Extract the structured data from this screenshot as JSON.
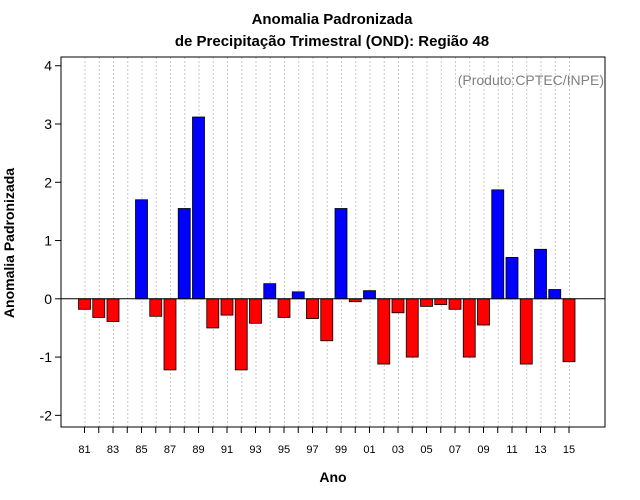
{
  "chart_data": {
    "type": "bar",
    "title_line1": "Anomalia Padronizada",
    "title_line2": "de Precipitação Trimestral (OND): Região 48",
    "xlabel": "Ano",
    "ylabel": "Anomalia Padronizada",
    "annotation": "(Produto:CPTEC/INPE)",
    "ylim": [
      -2.2,
      4.15
    ],
    "yticks": [
      -2,
      -1,
      0,
      1,
      2,
      3,
      4
    ],
    "years": [
      1981,
      1982,
      1983,
      1984,
      1985,
      1986,
      1987,
      1988,
      1989,
      1990,
      1991,
      1992,
      1993,
      1994,
      1995,
      1996,
      1997,
      1998,
      1999,
      2000,
      2001,
      2002,
      2003,
      2004,
      2005,
      2006,
      2007,
      2008,
      2009,
      2010,
      2011,
      2012,
      2013,
      2014,
      2015
    ],
    "values": [
      -0.18,
      -0.32,
      -0.39,
      0,
      1.7,
      -0.3,
      -1.22,
      1.55,
      3.12,
      -0.5,
      -0.28,
      -1.22,
      -0.42,
      0.26,
      -0.32,
      0.12,
      -0.34,
      -0.72,
      1.55,
      -0.05,
      0.14,
      -1.12,
      -0.24,
      -1.0,
      -0.13,
      -0.1,
      -0.18,
      -1.0,
      -0.45,
      1.87,
      0.71,
      -1.12,
      0.85,
      0.16,
      -1.08
    ],
    "xtick_labels": [
      {
        "year": 1981,
        "label": "81"
      },
      {
        "year": 1983,
        "label": "83"
      },
      {
        "year": 1985,
        "label": "85"
      },
      {
        "year": 1987,
        "label": "87"
      },
      {
        "year": 1989,
        "label": "89"
      },
      {
        "year": 1991,
        "label": "91"
      },
      {
        "year": 1993,
        "label": "93"
      },
      {
        "year": 1995,
        "label": "95"
      },
      {
        "year": 1997,
        "label": "97"
      },
      {
        "year": 1999,
        "label": "99"
      },
      {
        "year": 2001,
        "label": "01"
      },
      {
        "year": 2003,
        "label": "03"
      },
      {
        "year": 2005,
        "label": "05"
      },
      {
        "year": 2007,
        "label": "07"
      },
      {
        "year": 2009,
        "label": "09"
      },
      {
        "year": 2011,
        "label": "11"
      },
      {
        "year": 2013,
        "label": "13"
      },
      {
        "year": 2015,
        "label": "15"
      }
    ],
    "grid": true,
    "colors": {
      "positive": "#0000ff",
      "negative": "#ff0000",
      "grid": "#c8c8c8",
      "annotation": "#808080"
    }
  }
}
